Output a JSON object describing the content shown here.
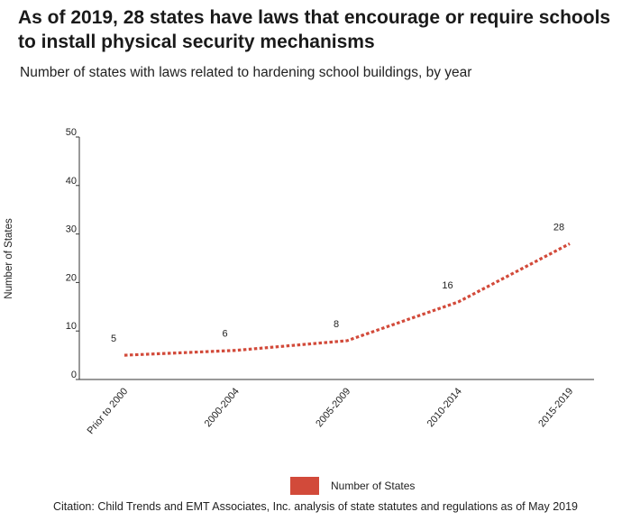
{
  "header": {
    "title": "As of 2019, 28 states have laws that encourage or require schools to install physical security mechanisms",
    "subtitle": "Number of states with laws related to hardening school buildings, by year"
  },
  "footer": {
    "citation": "Citation: Child Trends and EMT Associates, Inc. analysis of state statutes and regulations as of May 2019"
  },
  "chart_data": {
    "type": "line",
    "title": "As of 2019, 28 states have laws that encourage or require schools to install physical security mechanisms",
    "subtitle": "Number of states with laws related to hardening school buildings, by year",
    "xlabel": "",
    "ylabel": "Number of States",
    "categories": [
      "Prior to 2000",
      "2000-2004",
      "2005-2009",
      "2010-2014",
      "2015-2019"
    ],
    "series": [
      {
        "name": "Number of States",
        "values": [
          5,
          6,
          8,
          16,
          28
        ],
        "color": "#d24a3a",
        "style": "dotted"
      }
    ],
    "ylim": [
      0,
      50
    ],
    "yticks": [
      0,
      10,
      20,
      30,
      40,
      50
    ],
    "grid": false,
    "legend": "bottom-center",
    "data_labels": true
  }
}
